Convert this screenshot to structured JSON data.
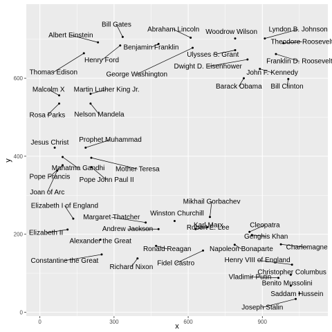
{
  "chart_data": {
    "type": "scatter",
    "title": "",
    "xlabel": "x",
    "ylabel": "y",
    "xlim": [
      -55,
      1165
    ],
    "ylim": [
      -10,
      790
    ],
    "x_ticks": [
      0,
      300,
      600,
      900
    ],
    "y_ticks": [
      0,
      200,
      400,
      600
    ],
    "grid": true,
    "colors": {
      "panel": "#ebebeb",
      "grid": "#ffffff",
      "point": "#000000",
      "text": "#000000"
    },
    "points": [
      {
        "name": "Bill Gates",
        "x": 335,
        "y": 706,
        "lx": 310,
        "ly": 732,
        "anchor": "middle"
      },
      {
        "name": "Abraham Lincoln",
        "x": 610,
        "y": 704,
        "lx": 540,
        "ly": 720,
        "anchor": "middle"
      },
      {
        "name": "Woodrow Wilson",
        "x": 790,
        "y": 702,
        "lx": 775,
        "ly": 714,
        "anchor": "middle"
      },
      {
        "name": "Lyndon B. Johnson",
        "x": 910,
        "y": 702,
        "lx": 1045,
        "ly": 720,
        "anchor": "middle"
      },
      {
        "name": "Albert Einstein",
        "x": 235,
        "y": 692,
        "lx": 125,
        "ly": 705,
        "anchor": "middle"
      },
      {
        "name": "Theodore Roosevelt",
        "x": 985,
        "y": 690,
        "lx": 1060,
        "ly": 688,
        "anchor": "middle"
      },
      {
        "name": "Benjamin Franklin",
        "x": 480,
        "y": 688,
        "lx": 450,
        "ly": 674,
        "anchor": "middle"
      },
      {
        "name": "Henry Ford",
        "x": 325,
        "y": 684,
        "lx": 250,
        "ly": 641,
        "anchor": "middle"
      },
      {
        "name": "Ulysses S. Grant",
        "x": 790,
        "y": 672,
        "lx": 700,
        "ly": 655,
        "anchor": "middle"
      },
      {
        "name": "Franklin D. Roosevelt",
        "x": 955,
        "y": 662,
        "lx": 1050,
        "ly": 638,
        "anchor": "middle"
      },
      {
        "name": "George Washington",
        "x": 618,
        "y": 678,
        "lx": 392,
        "ly": 605,
        "anchor": "middle"
      },
      {
        "name": "Dwight D. Eisenhower",
        "x": 840,
        "y": 648,
        "lx": 680,
        "ly": 625,
        "anchor": "middle"
      },
      {
        "name": "John F. Kennedy",
        "x": 890,
        "y": 624,
        "lx": 940,
        "ly": 609,
        "anchor": "middle"
      },
      {
        "name": "Thomas Edison",
        "x": 178,
        "y": 664,
        "lx": 55,
        "ly": 610,
        "anchor": "middle"
      },
      {
        "name": "Barack Obama",
        "x": 825,
        "y": 600,
        "lx": 805,
        "ly": 574,
        "anchor": "middle"
      },
      {
        "name": "Bill Clinton",
        "x": 1005,
        "y": 598,
        "lx": 1000,
        "ly": 574,
        "anchor": "middle"
      },
      {
        "name": "Malcolm X",
        "x": 78,
        "y": 556,
        "lx": 35,
        "ly": 566,
        "anchor": "middle"
      },
      {
        "name": "Martin Luther King Jr.",
        "x": 205,
        "y": 560,
        "lx": 270,
        "ly": 566,
        "anchor": "middle"
      },
      {
        "name": "Rosa Parks",
        "x": 78,
        "y": 535,
        "lx": 30,
        "ly": 500,
        "anchor": "middle"
      },
      {
        "name": "Nelson Mandela",
        "x": 205,
        "y": 535,
        "lx": 240,
        "ly": 502,
        "anchor": "middle"
      },
      {
        "name": "Jesus Christ",
        "x": 60,
        "y": 422,
        "lx": 40,
        "ly": 430,
        "anchor": "middle"
      },
      {
        "name": "Prophet Muhammad",
        "x": 185,
        "y": 422,
        "lx": 285,
        "ly": 437,
        "anchor": "middle"
      },
      {
        "name": "Mahatma Gandhi",
        "x": 92,
        "y": 398,
        "lx": 155,
        "ly": 364,
        "anchor": "middle"
      },
      {
        "name": "Mother Teresa",
        "x": 208,
        "y": 396,
        "lx": 395,
        "ly": 362,
        "anchor": "middle"
      },
      {
        "name": "Pope Francis",
        "x": 92,
        "y": 377,
        "lx": 40,
        "ly": 342,
        "anchor": "middle"
      },
      {
        "name": "Pope John Paul II",
        "x": 208,
        "y": 372,
        "lx": 270,
        "ly": 334,
        "anchor": "middle"
      },
      {
        "name": "Joan of Arc",
        "x": 70,
        "y": 363,
        "lx": 30,
        "ly": 302,
        "anchor": "middle"
      },
      {
        "name": "Elizabeth I of England",
        "x": 135,
        "y": 240,
        "lx": 100,
        "ly": 268,
        "anchor": "middle"
      },
      {
        "name": "Mikhail Gorbachev",
        "x": 688,
        "y": 244,
        "lx": 695,
        "ly": 278,
        "anchor": "middle"
      },
      {
        "name": "Winston Churchill",
        "x": 545,
        "y": 234,
        "lx": 555,
        "ly": 248,
        "anchor": "middle"
      },
      {
        "name": "Margaret Thatcher",
        "x": 428,
        "y": 230,
        "lx": 290,
        "ly": 238,
        "anchor": "middle"
      },
      {
        "name": "Karl Marx",
        "x": 678,
        "y": 218,
        "lx": 682,
        "ly": 218,
        "anchor": "middle"
      },
      {
        "name": "Cleopatra",
        "x": 848,
        "y": 206,
        "lx": 910,
        "ly": 218,
        "anchor": "middle"
      },
      {
        "name": "Elizabeth II",
        "x": 112,
        "y": 212,
        "lx": 25,
        "ly": 198,
        "anchor": "middle"
      },
      {
        "name": "Robert E. Lee",
        "x": 630,
        "y": 213,
        "lx": 680,
        "ly": 212,
        "anchor": "middle"
      },
      {
        "name": "Andrew Jackson",
        "x": 480,
        "y": 213,
        "lx": 355,
        "ly": 208,
        "anchor": "middle"
      },
      {
        "name": "Genghis Khan",
        "x": 858,
        "y": 198,
        "lx": 915,
        "ly": 189,
        "anchor": "middle"
      },
      {
        "name": "Alexander the Great",
        "x": 245,
        "y": 186,
        "lx": 245,
        "ly": 177,
        "anchor": "middle"
      },
      {
        "name": "Charlemagne",
        "x": 975,
        "y": 174,
        "lx": 1080,
        "ly": 161,
        "anchor": "middle"
      },
      {
        "name": "Ronald Reagan",
        "x": 470,
        "y": 170,
        "lx": 515,
        "ly": 157,
        "anchor": "middle"
      },
      {
        "name": "Napoleon Bonaparte",
        "x": 788,
        "y": 173,
        "lx": 815,
        "ly": 157,
        "anchor": "middle"
      },
      {
        "name": "Constantine the Great",
        "x": 250,
        "y": 148,
        "lx": 100,
        "ly": 127,
        "anchor": "middle"
      },
      {
        "name": "Henry VIII of England",
        "x": 1020,
        "y": 122,
        "lx": 880,
        "ly": 128,
        "anchor": "middle"
      },
      {
        "name": "Fidel Castro",
        "x": 660,
        "y": 158,
        "lx": 550,
        "ly": 120,
        "anchor": "middle"
      },
      {
        "name": "Richard Nixon",
        "x": 395,
        "y": 138,
        "lx": 370,
        "ly": 111,
        "anchor": "middle"
      },
      {
        "name": "Christopher Columbus",
        "x": 1015,
        "y": 96,
        "lx": 1020,
        "ly": 97,
        "anchor": "middle"
      },
      {
        "name": "Vladimir Putin",
        "x": 965,
        "y": 88,
        "lx": 850,
        "ly": 85,
        "anchor": "middle"
      },
      {
        "name": "Benito Mussolini",
        "x": 1015,
        "y": 68,
        "lx": 1000,
        "ly": 69,
        "anchor": "middle"
      },
      {
        "name": "Saddam Hussein",
        "x": 1050,
        "y": 48,
        "lx": 1040,
        "ly": 41,
        "anchor": "middle"
      },
      {
        "name": "Joseph Stalin",
        "x": 1035,
        "y": 34,
        "lx": 900,
        "ly": 7,
        "anchor": "middle"
      }
    ]
  }
}
